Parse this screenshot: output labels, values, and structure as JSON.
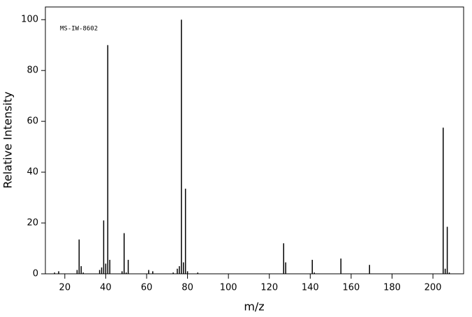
{
  "chart_data": {
    "type": "stick",
    "annotation": "MS-IW-8602",
    "xlabel": "m/z",
    "ylabel": "Relative Intensity",
    "x": [
      15,
      17,
      26,
      27,
      28,
      29,
      37,
      38,
      39,
      40,
      41,
      42,
      48,
      49,
      50,
      51,
      61,
      63,
      73,
      75,
      76,
      77,
      78,
      79,
      80,
      85,
      127,
      128,
      141,
      142,
      155,
      169,
      205,
      206,
      207,
      208
    ],
    "values": [
      0.5,
      1,
      1.5,
      13.5,
      3,
      0.5,
      1.5,
      2.5,
      21,
      4,
      90,
      5.5,
      1,
      16,
      0.5,
      5.5,
      1.5,
      1,
      0.5,
      2,
      3,
      100,
      4.5,
      33.5,
      1,
      0.5,
      12,
      4.5,
      5.5,
      0.5,
      6,
      3.5,
      57.5,
      2,
      18.5,
      0.5
    ],
    "color": "#000000",
    "xlim": [
      10.5,
      215
    ],
    "xticks": [
      20,
      40,
      60,
      80,
      100,
      120,
      140,
      160,
      180,
      200
    ],
    "ylim": [
      0,
      105
    ],
    "yticks": [
      0,
      20,
      40,
      60,
      80,
      100
    ]
  }
}
